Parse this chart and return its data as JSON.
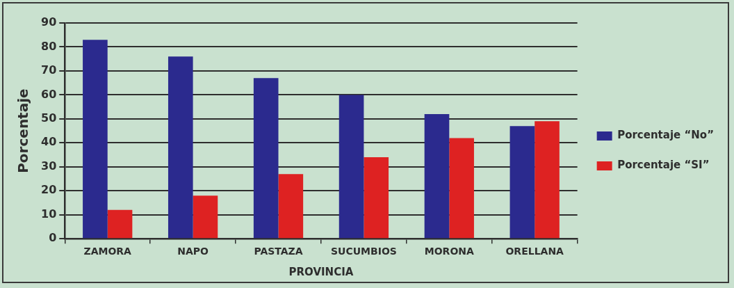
{
  "chart_data": {
    "type": "bar",
    "xlabel": "PROVINCIA",
    "ylabel": "Porcentaje",
    "categories": [
      "ZAMORA",
      "NAPO",
      "PASTAZA",
      "SUCUMBIOS",
      "MORONA",
      "ORELLANA"
    ],
    "series": [
      {
        "name": "Porcentaje “No”",
        "color": "#2b2a8e",
        "values": [
          83,
          76,
          67,
          60,
          52,
          47
        ]
      },
      {
        "name": "Porcentaje “SI”",
        "color": "#de2222",
        "values": [
          12,
          18,
          27,
          34,
          42,
          49
        ]
      }
    ],
    "ylim": [
      0,
      90
    ],
    "yticks": [
      0,
      10,
      20,
      30,
      40,
      50,
      60,
      70,
      80,
      90
    ],
    "grid": "y",
    "legend": "right"
  }
}
